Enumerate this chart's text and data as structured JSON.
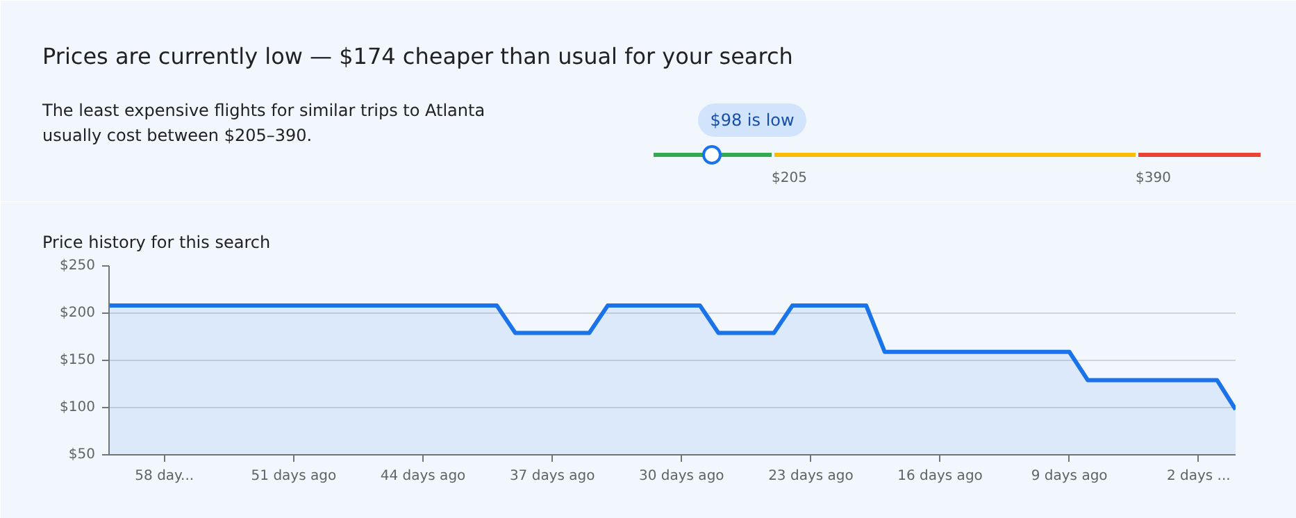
{
  "chart_data": [
    {
      "type": "other",
      "title": "Prices are currently low — $174 cheaper than usual for your search",
      "annotations": [
        "The least expensive flights for similar trips to Atlanta\nusually cost between $205–390.",
        "$98 is low",
        "$205",
        "$390"
      ],
      "colors": [
        "#34a853",
        "#fbbc04",
        "#ea4335"
      ]
    },
    {
      "type": "area",
      "title": "Price history for this search",
      "color": "#1a73e8",
      "x": [
        -61,
        -40,
        -39,
        -35,
        -34,
        -29,
        -28,
        -25,
        -24,
        -20,
        -19,
        -9,
        -8,
        -1,
        0
      ],
      "values": [
        208,
        208,
        179,
        179,
        208,
        208,
        179,
        179,
        208,
        208,
        159,
        159,
        129,
        129,
        98
      ],
      "xlim": [
        -61,
        0
      ],
      "ylim": [
        50,
        250
      ],
      "xticks": [
        {
          "value": -58,
          "label": "58 day..."
        },
        {
          "value": -51,
          "label": "51 days ago"
        },
        {
          "value": -44,
          "label": "44 days ago"
        },
        {
          "value": -37,
          "label": "37 days ago"
        },
        {
          "value": -30,
          "label": "30 days ago"
        },
        {
          "value": -23,
          "label": "23 days ago"
        },
        {
          "value": -16,
          "label": "16 days ago"
        },
        {
          "value": -9,
          "label": "9 days ago"
        },
        {
          "value": -2,
          "label": "2 days ..."
        }
      ],
      "yticks": [
        {
          "value": 50,
          "label": "$50"
        },
        {
          "value": 100,
          "label": "$100"
        },
        {
          "value": 150,
          "label": "$150"
        },
        {
          "value": 200,
          "label": "$200"
        },
        {
          "value": 250,
          "label": "$250"
        }
      ],
      "grid": "y"
    }
  ]
}
